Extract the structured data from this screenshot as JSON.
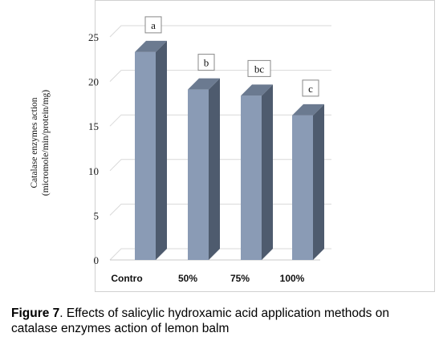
{
  "chart_data": {
    "type": "bar",
    "style": "3d",
    "categories": [
      "Contro",
      "50%",
      "75%",
      "100%"
    ],
    "values": [
      23.3,
      19.1,
      18.4,
      16.2
    ],
    "significance_letters": [
      "a",
      "b",
      "bc",
      "c"
    ],
    "ylabel_line1": "Catalase enzymes action",
    "ylabel_line2": "(micromole/min/protein/mg)",
    "ylim": [
      0,
      25
    ],
    "yticks": [
      "0",
      "5",
      "10",
      "15",
      "20",
      "25"
    ],
    "grid": true,
    "colors": {
      "bar_front": "#8a9bb5",
      "bar_side": "#4e5b6e",
      "bar_top": "#6b7a90",
      "grid": "#d9d9d9"
    }
  },
  "caption": {
    "label": "Figure 7",
    "text": ". Effects of salicylic hydroxamic acid application methods on catalase enzymes action of lemon balm"
  }
}
